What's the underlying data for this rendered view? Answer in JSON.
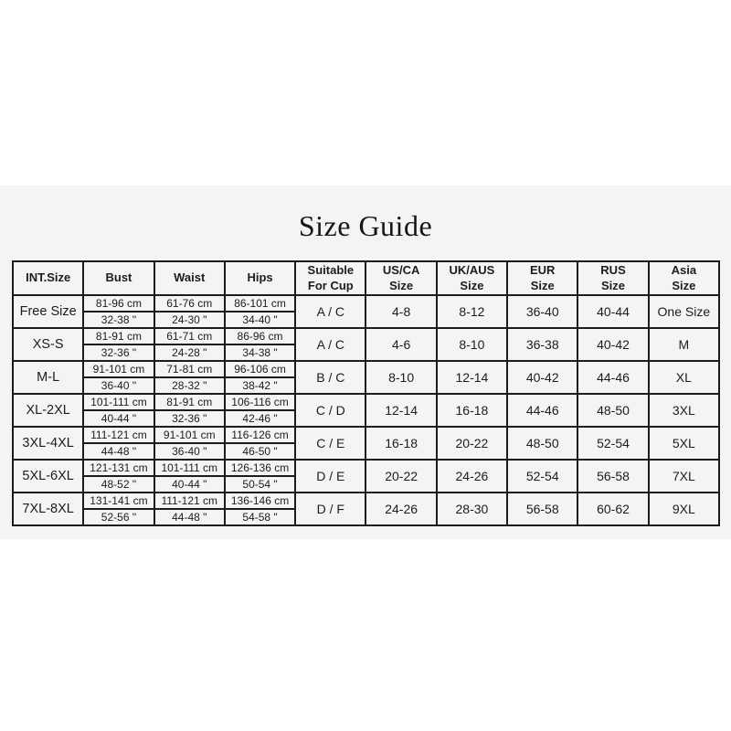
{
  "title": "Size Guide",
  "colors": {
    "page_background": "#ffffff",
    "panel_background": "#f4f4f2",
    "table_border": "#1c1c1c",
    "text": "#1c1c1c"
  },
  "table": {
    "columns": [
      {
        "key": "int_size",
        "label": "INT.Size",
        "type": "plain"
      },
      {
        "key": "bust",
        "label": "Bust",
        "type": "measure"
      },
      {
        "key": "waist",
        "label": "Waist",
        "type": "measure"
      },
      {
        "key": "hips",
        "label": "Hips",
        "type": "measure"
      },
      {
        "key": "cup",
        "label": "Suitable\nFor Cup",
        "type": "plain"
      },
      {
        "key": "usca",
        "label": "US/CA\nSize",
        "type": "plain"
      },
      {
        "key": "ukaus",
        "label": "UK/AUS\nSize",
        "type": "plain"
      },
      {
        "key": "eur",
        "label": "EUR\nSize",
        "type": "plain"
      },
      {
        "key": "rus",
        "label": "RUS\nSize",
        "type": "plain"
      },
      {
        "key": "asia",
        "label": "Asia\nSize",
        "type": "plain"
      }
    ],
    "rows": [
      {
        "int_size": "Free Size",
        "bust": {
          "cm": "81-96 cm",
          "in": "32-38 \""
        },
        "waist": {
          "cm": "61-76 cm",
          "in": "24-30 \""
        },
        "hips": {
          "cm": "86-101 cm",
          "in": "34-40 \""
        },
        "cup": "A / C",
        "usca": "4-8",
        "ukaus": "8-12",
        "eur": "36-40",
        "rus": "40-44",
        "asia": "One Size"
      },
      {
        "int_size": "XS-S",
        "bust": {
          "cm": "81-91 cm",
          "in": "32-36 \""
        },
        "waist": {
          "cm": "61-71 cm",
          "in": "24-28 \""
        },
        "hips": {
          "cm": "86-96 cm",
          "in": "34-38 \""
        },
        "cup": "A / C",
        "usca": "4-6",
        "ukaus": "8-10",
        "eur": "36-38",
        "rus": "40-42",
        "asia": "M"
      },
      {
        "int_size": "M-L",
        "bust": {
          "cm": "91-101 cm",
          "in": "36-40 \""
        },
        "waist": {
          "cm": "71-81 cm",
          "in": "28-32 \""
        },
        "hips": {
          "cm": "96-106 cm",
          "in": "38-42 \""
        },
        "cup": "B / C",
        "usca": "8-10",
        "ukaus": "12-14",
        "eur": "40-42",
        "rus": "44-46",
        "asia": "XL"
      },
      {
        "int_size": "XL-2XL",
        "bust": {
          "cm": "101-111 cm",
          "in": "40-44 \""
        },
        "waist": {
          "cm": "81-91 cm",
          "in": "32-36 \""
        },
        "hips": {
          "cm": "106-116 cm",
          "in": "42-46 \""
        },
        "cup": "C / D",
        "usca": "12-14",
        "ukaus": "16-18",
        "eur": "44-46",
        "rus": "48-50",
        "asia": "3XL"
      },
      {
        "int_size": "3XL-4XL",
        "bust": {
          "cm": "111-121 cm",
          "in": "44-48 \""
        },
        "waist": {
          "cm": "91-101 cm",
          "in": "36-40 \""
        },
        "hips": {
          "cm": "116-126 cm",
          "in": "46-50 \""
        },
        "cup": "C / E",
        "usca": "16-18",
        "ukaus": "20-22",
        "eur": "48-50",
        "rus": "52-54",
        "asia": "5XL"
      },
      {
        "int_size": "5XL-6XL",
        "bust": {
          "cm": "121-131 cm",
          "in": "48-52 \""
        },
        "waist": {
          "cm": "101-111 cm",
          "in": "40-44 \""
        },
        "hips": {
          "cm": "126-136 cm",
          "in": "50-54 \""
        },
        "cup": "D / E",
        "usca": "20-22",
        "ukaus": "24-26",
        "eur": "52-54",
        "rus": "56-58",
        "asia": "7XL"
      },
      {
        "int_size": "7XL-8XL",
        "bust": {
          "cm": "131-141 cm",
          "in": "52-56 \""
        },
        "waist": {
          "cm": "111-121 cm",
          "in": "44-48 \""
        },
        "hips": {
          "cm": "136-146 cm",
          "in": "54-58 \""
        },
        "cup": "D / F",
        "usca": "24-26",
        "ukaus": "28-30",
        "eur": "56-58",
        "rus": "60-62",
        "asia": "9XL"
      }
    ]
  }
}
